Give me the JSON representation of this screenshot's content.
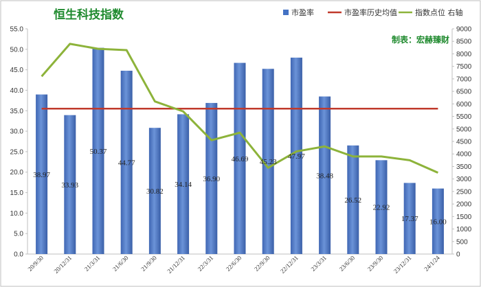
{
  "chart_data": {
    "type": "bar",
    "title": "恒生科技指数",
    "maker_label": "制表：宏赫臻财",
    "categories": [
      "20/9/30",
      "20/12/31",
      "21/3/31",
      "21/6/30",
      "21/9/30",
      "21/12/31",
      "22/3/31",
      "22/6/30",
      "22/9/30",
      "22/12/31",
      "23/3/31",
      "23/6/30",
      "23/9/30",
      "23/12/31",
      "24/1/24"
    ],
    "series": [
      {
        "name": "市盈率",
        "type": "bar",
        "axis": "left",
        "color": "#4472c4",
        "values": [
          38.97,
          33.93,
          50.37,
          44.77,
          30.82,
          34.14,
          36.9,
          46.69,
          45.23,
          47.97,
          38.48,
          26.52,
          22.92,
          17.37,
          16.0
        ],
        "value_labels": [
          "38.97",
          "33.93",
          "50.37",
          "44.77",
          "30.82",
          "34.14",
          "36.90",
          "46.69",
          "45.23",
          "47.97",
          "38.48",
          "26.52",
          "22.92",
          "17.37",
          "16.00"
        ]
      },
      {
        "name": "市盈率历史均值",
        "type": "line",
        "axis": "left",
        "color": "#c0392b",
        "values": [
          35.5,
          35.5,
          35.5,
          35.5,
          35.5,
          35.5,
          35.5,
          35.5,
          35.5,
          35.5,
          35.5,
          35.5,
          35.5,
          35.5,
          35.5
        ]
      },
      {
        "name": "指数点位 右轴",
        "type": "line",
        "axis": "right",
        "color": "#8db33a",
        "values": [
          7100,
          8400,
          8200,
          8150,
          6100,
          5700,
          4550,
          4850,
          3450,
          4100,
          4300,
          3900,
          3900,
          3750,
          3250
        ]
      }
    ],
    "left_axis": {
      "min": 0,
      "max": 55,
      "ticks": [
        "0.0",
        "5.0",
        "10.0",
        "15.0",
        "20.0",
        "25.0",
        "30.0",
        "35.0",
        "40.0",
        "45.0",
        "50.0",
        "55.0"
      ]
    },
    "right_axis": {
      "min": 0,
      "max": 9000,
      "ticks": [
        "0",
        "500",
        "1000",
        "1500",
        "2000",
        "2500",
        "3000",
        "3500",
        "4000",
        "4500",
        "5000",
        "5500",
        "6000",
        "6500",
        "7000",
        "7500",
        "8000",
        "8500",
        "9000"
      ]
    },
    "legend_position": "top-right",
    "grid": false
  }
}
